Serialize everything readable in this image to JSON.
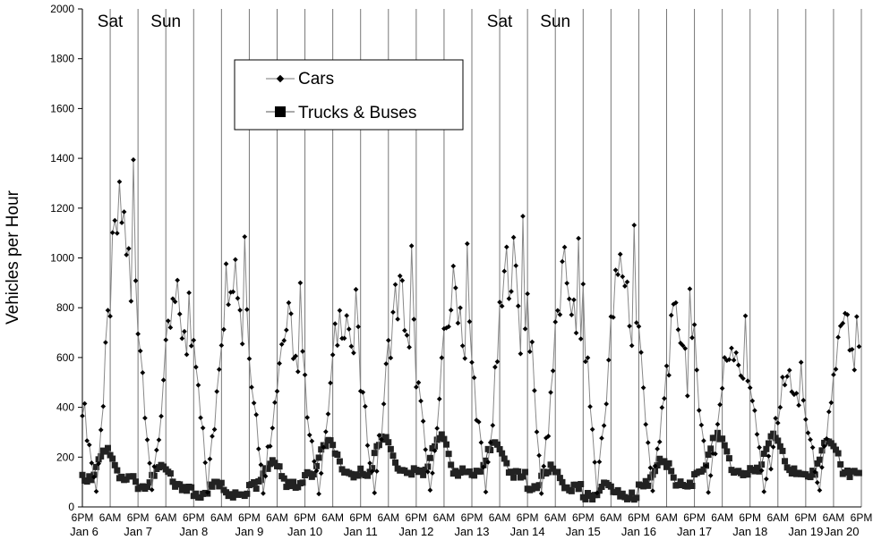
{
  "chart_data": {
    "type": "line",
    "ylabel": "Vehicles per Hour",
    "ylim": [
      0,
      2000
    ],
    "yticks": [
      "0",
      "200",
      "400",
      "600",
      "800",
      "1000",
      "1200",
      "1400",
      "1600",
      "1800",
      "2000"
    ],
    "xlim_days": [
      0,
      14
    ],
    "legend": {
      "position": "top-center",
      "entries": [
        "Cars",
        "Trucks & Buses"
      ]
    },
    "x_time_labels": [
      {
        "d": 0,
        "label": "6PM"
      },
      {
        "d": 1,
        "label": "6AM"
      },
      {
        "d": 1,
        "label": "6PM"
      },
      {
        "d": 2,
        "label": "6AM"
      },
      {
        "d": 2,
        "label": "6PM"
      },
      {
        "d": 3,
        "label": "6AM"
      },
      {
        "d": 3,
        "label": "6PM"
      },
      {
        "d": 4,
        "label": "6AM"
      },
      {
        "d": 4,
        "label": "6PM"
      },
      {
        "d": 5,
        "label": "6AM"
      },
      {
        "d": 5,
        "label": "6PM"
      },
      {
        "d": 6,
        "label": "6AM"
      },
      {
        "d": 6,
        "label": "6PM"
      },
      {
        "d": 7,
        "label": "6AM"
      },
      {
        "d": 7,
        "label": "6PM"
      },
      {
        "d": 8,
        "label": "6AM"
      },
      {
        "d": 8,
        "label": "6PM"
      },
      {
        "d": 9,
        "label": "6AM"
      },
      {
        "d": 9,
        "label": "6PM"
      },
      {
        "d": 10,
        "label": "6AM"
      },
      {
        "d": 10,
        "label": "6PM"
      },
      {
        "d": 11,
        "label": "6AM"
      },
      {
        "d": 11,
        "label": "6PM"
      },
      {
        "d": 12,
        "label": "6AM"
      },
      {
        "d": 12,
        "label": "6PM"
      },
      {
        "d": 13,
        "label": "6AM"
      },
      {
        "d": 13,
        "label": "6PM"
      },
      {
        "d": 14,
        "label": "6AM"
      },
      {
        "d": 14,
        "label": "6PM"
      }
    ],
    "x_date_labels": [
      "Jan 6",
      "Jan 7",
      "Jan 8",
      "Jan 9",
      "Jan 10",
      "Jan 11",
      "Jan 12",
      "Jan 13",
      "Jan 14",
      "Jan 15",
      "Jan 16",
      "Jan 17",
      "Jan 18",
      "Jan 19",
      "Jan 20"
    ],
    "day_annotations": [
      {
        "label": "Sat",
        "day": 1
      },
      {
        "label": "Sun",
        "day": 2
      },
      {
        "label": "Sat",
        "day": 8
      },
      {
        "label": "Sun",
        "day": 9
      }
    ],
    "series": [
      {
        "name": "Cars",
        "marker": "diamond",
        "days_peaks": [
          {
            "day": 0,
            "peak": 600,
            "evening": 430
          },
          {
            "day": 1,
            "peak": 1330,
            "evening": 780
          },
          {
            "day": 2,
            "peak": 920,
            "evening": 750
          },
          {
            "day": 3,
            "peak": 1130,
            "evening": 660
          },
          {
            "day": 4,
            "peak": 830,
            "evening": 470
          },
          {
            "day": 5,
            "peak": 900,
            "evening": 500
          },
          {
            "day": 6,
            "peak": 970,
            "evening": 550
          },
          {
            "day": 7,
            "peak": 990,
            "evening": 580
          },
          {
            "day": 8,
            "peak": 1130,
            "evening": 840
          },
          {
            "day": 9,
            "peak": 1050,
            "evening": 780
          },
          {
            "day": 10,
            "peak": 1090,
            "evening": 690
          },
          {
            "day": 11,
            "peak": 850,
            "evening": 650
          },
          {
            "day": 12,
            "peak": 760,
            "evening": 520
          },
          {
            "day": 13,
            "peak": 590,
            "evening": 360
          },
          {
            "day": 14,
            "peak": 810,
            "evening": 730
          }
        ]
      },
      {
        "name": "Trucks & Buses",
        "marker": "square",
        "days_peaks": [
          {
            "day": 0,
            "peak": 210
          },
          {
            "day": 1,
            "peak": 250
          },
          {
            "day": 2,
            "peak": 70
          },
          {
            "day": 3,
            "peak": 110
          },
          {
            "day": 4,
            "peak": 240
          },
          {
            "day": 5,
            "peak": 280
          },
          {
            "day": 6,
            "peak": 280
          },
          {
            "day": 7,
            "peak": 280
          },
          {
            "day": 8,
            "peak": 240
          },
          {
            "day": 9,
            "peak": 70
          },
          {
            "day": 10,
            "peak": 100
          },
          {
            "day": 11,
            "peak": 270
          },
          {
            "day": 12,
            "peak": 300
          },
          {
            "day": 13,
            "peak": 270
          },
          {
            "day": 14,
            "peak": 270
          }
        ]
      }
    ]
  }
}
